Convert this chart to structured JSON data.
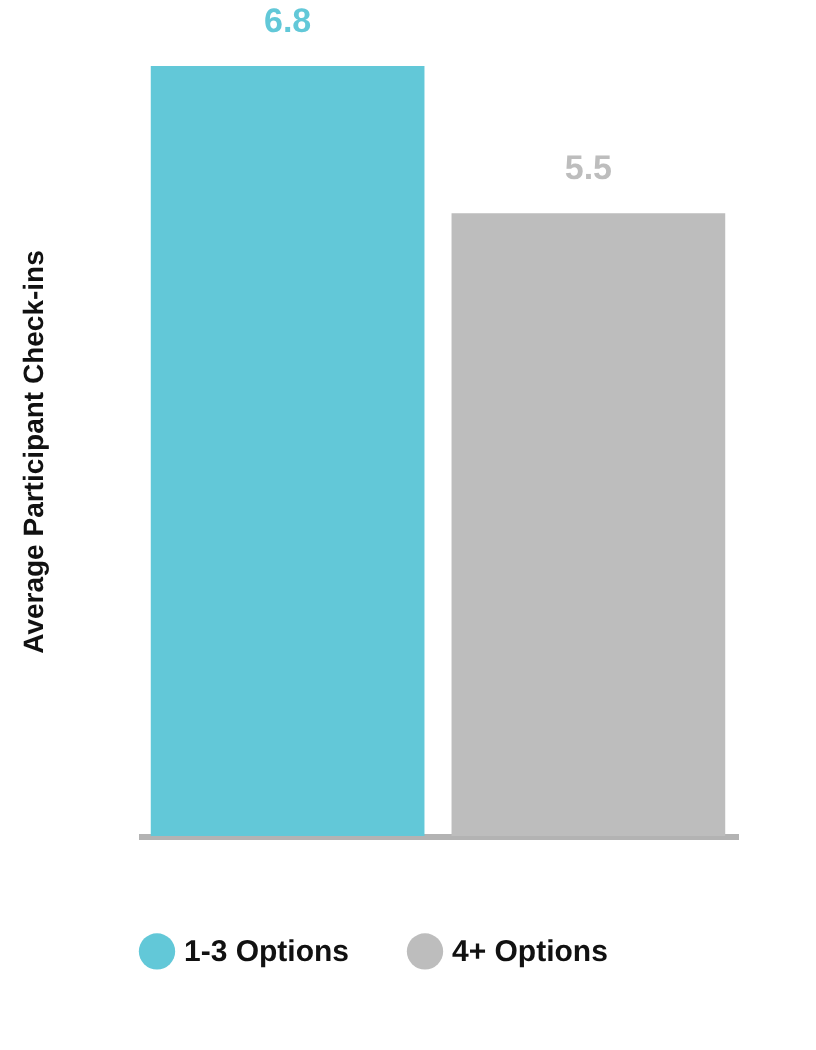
{
  "chart_data": {
    "type": "bar",
    "ylabel": "Average Participant  Check-ins",
    "categories": [
      null
    ],
    "series": [
      {
        "name": "1-3 Options",
        "color": "#62c8d8",
        "values": [
          6.8
        ]
      },
      {
        "name": "4+ Options",
        "color": "#bdbdbd",
        "values": [
          5.5
        ]
      }
    ],
    "data_labels": true,
    "legend": "bottom",
    "grid": false
  }
}
